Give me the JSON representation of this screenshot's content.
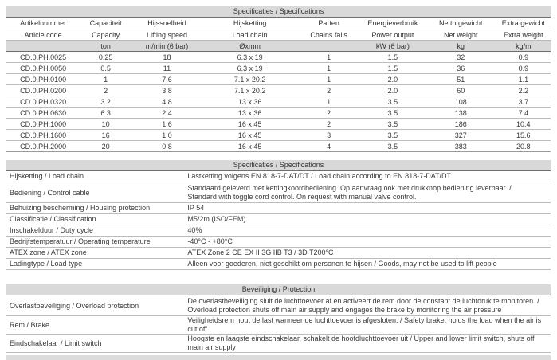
{
  "colors": {
    "header_bg": "#d9d9d9",
    "border_heavy": "#6e6e6e",
    "border_light": "#bcbcbc",
    "text": "#3a3a3a"
  },
  "spec_table": {
    "title": "Specificaties / Specifications",
    "columns": [
      {
        "nl": "Artikelnummer",
        "en": "Article code",
        "unit": ""
      },
      {
        "nl": "Capaciteit",
        "en": "Capacity",
        "unit": "ton"
      },
      {
        "nl": "Hijssnelheid",
        "en": "Lifting speed",
        "unit": "m/min (6 bar)"
      },
      {
        "nl": "Hijsketting",
        "en": "Load chain",
        "unit": "Øxmm"
      },
      {
        "nl": "Parten",
        "en": "Chains falls",
        "unit": ""
      },
      {
        "nl": "Energieverbruik",
        "en": "Power output",
        "unit": "kW (6 bar)"
      },
      {
        "nl": "Netto gewicht",
        "en": "Net weight",
        "unit": "kg"
      },
      {
        "nl": "Extra gewicht",
        "en": "Extra weight",
        "unit": "kg/m"
      }
    ],
    "rows": [
      [
        "CD.0.PH.0025",
        "0.25",
        "18",
        "6.3 x 19",
        "1",
        "1.5",
        "32",
        "0.9"
      ],
      [
        "CD.0.PH.0050",
        "0.5",
        "11",
        "6.3 x 19",
        "1",
        "1.5",
        "36",
        "0.9"
      ],
      [
        "CD.0.PH.0100",
        "1",
        "7.6",
        "7.1 x 20.2",
        "1",
        "2.0",
        "51",
        "1.1"
      ],
      [
        "CD.0.PH.0200",
        "2",
        "3.8",
        "7.1 x 20.2",
        "2",
        "2.0",
        "60",
        "2.2"
      ],
      [
        "CD.0.PH.0320",
        "3.2",
        "4.8",
        "13 x 36",
        "1",
        "3.5",
        "108",
        "3.7"
      ],
      [
        "CD.0.PH.0630",
        "6.3",
        "2.4",
        "13 x 36",
        "2",
        "3.5",
        "138",
        "7.4"
      ],
      [
        "CD.0.PH.1000",
        "10",
        "1.6",
        "16 x 45",
        "2",
        "3.5",
        "186",
        "10.4"
      ],
      [
        "CD.0.PH.1600",
        "16",
        "1.0",
        "16 x 45",
        "3",
        "3.5",
        "327",
        "15.6"
      ],
      [
        "CD.0.PH.2000",
        "20",
        "0.8",
        "16 x 45",
        "4",
        "3.5",
        "383",
        "20.8"
      ]
    ]
  },
  "details_table": {
    "title": "Specificaties / Specifications",
    "rows": [
      {
        "label": "Hijsketting / Load chain",
        "lines": [
          "Lastketting volgens EN 818-7-DAT/DT / Load chain according to EN 818-7-DAT/DT"
        ]
      },
      {
        "label": "Bediening / Control cable",
        "lines": [
          "Standaard geleverd met kettingkoordbediening. Op aanvraag ook met drukknop bediening leverbaar. /",
          "Standard with toggle cord control. On request with manual valve control."
        ]
      },
      {
        "label": "Behuizing bescherming / Housing protection",
        "lines": [
          "IP 54"
        ]
      },
      {
        "label": "Classificatie / Classification",
        "lines": [
          "M5/2m (ISO/FEM)"
        ]
      },
      {
        "label": "Inschakelduur / Duty cycle",
        "lines": [
          "40%"
        ]
      },
      {
        "label": "Bedrijfstemperatuur / Operating temperature",
        "lines": [
          "-40°C  -  +80°C"
        ]
      },
      {
        "label": "ATEX zone / ATEX zone",
        "lines": [
          "ATEX Zone 2 CE EX II 3G IIB T3 / 3D T200°C"
        ]
      },
      {
        "label": "Ladingtype / Load type",
        "lines": [
          "Alleen voor goederen, niet geschikt om personen te hijsen / Goods, may not be used to lift people"
        ]
      }
    ]
  },
  "protection_table": {
    "title": "Beveiliging / Protection",
    "rows": [
      {
        "label": "Overlastbeveiliging / Overload protection",
        "lines": [
          "De overlastbeveiliging  sluit de luchttoevoer af en activeert de rem door de constant de luchtdruk te monitoren. /",
          "Overload protection shuts off main air supply and engages the brake by monitoring the air pressure"
        ]
      },
      {
        "label": "Rem / Brake",
        "lines": [
          "Veiligheidsrem hout de last wanneer de luchttoevoer is afgesloten. / Safety brake, holds the load when the air is cut off"
        ]
      },
      {
        "label": "Eindschakelaar / Limit switch",
        "lines": [
          "Hoogste en laagste eindschakelaar, schakelt de hoofdluchttoevoer uit / Upper and lower limit switch, shuts off main air supply"
        ]
      }
    ]
  }
}
